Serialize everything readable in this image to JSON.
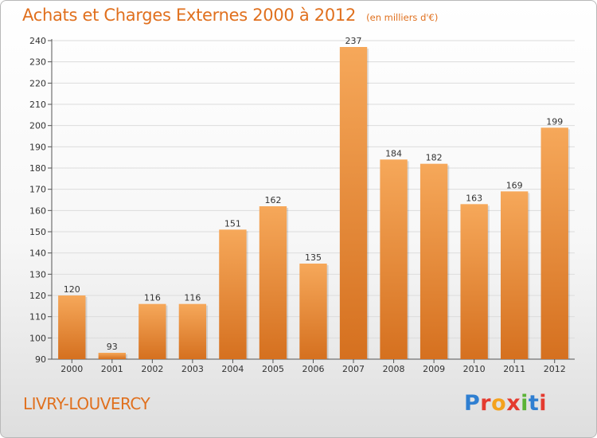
{
  "title": "Achats et Charges Externes 2000 à 2012",
  "title_unit": "(en milliers d'€)",
  "location": "LIVRY-LOUVERCY",
  "logo": {
    "text": "Proxiti",
    "colors": [
      "#2f7fd1",
      "#e43a2f",
      "#f4a21d",
      "#e43a2f",
      "#5bb336",
      "#2f7fd1",
      "#e43a2f"
    ]
  },
  "colors": {
    "bar_top": "#f6a85a",
    "bar_bottom": "#d5701f",
    "text_accent": "#e0701e"
  },
  "chart_data": {
    "type": "bar",
    "title": "Achats et Charges Externes 2000 à 2012",
    "subtitle": "(en milliers d'€)",
    "categories": [
      "2000",
      "2001",
      "2002",
      "2003",
      "2004",
      "2005",
      "2006",
      "2007",
      "2008",
      "2009",
      "2010",
      "2011",
      "2012"
    ],
    "values": [
      120,
      93,
      116,
      116,
      151,
      162,
      135,
      237,
      184,
      182,
      163,
      169,
      199
    ],
    "data_labels": [
      "120",
      "93",
      "116",
      "116",
      "151",
      "162",
      "135",
      "237",
      "184",
      "182",
      "163",
      "169",
      "199"
    ],
    "yticks": [
      "90",
      "100",
      "110",
      "120",
      "130",
      "140",
      "150",
      "160",
      "170",
      "180",
      "190",
      "200",
      "210",
      "220",
      "230",
      "240"
    ],
    "ylim": [
      90,
      240
    ],
    "grid": true,
    "legend": "none"
  }
}
